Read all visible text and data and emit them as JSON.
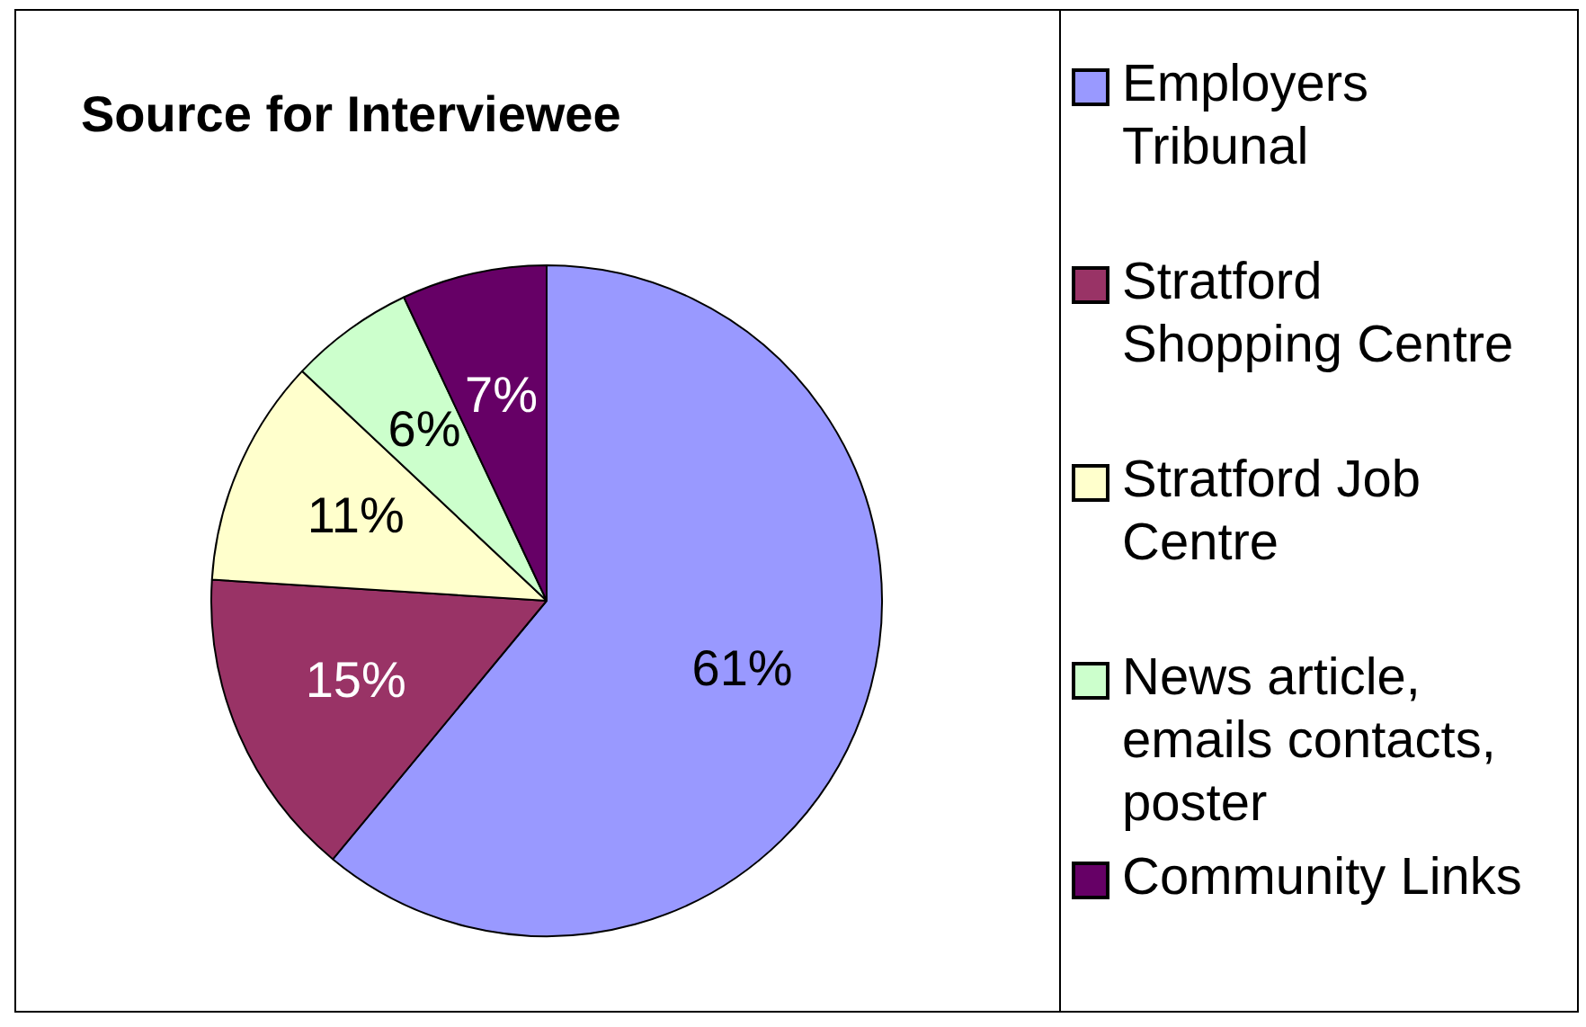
{
  "chart_data": {
    "type": "pie",
    "title": "Source for Interviewee",
    "categories": [
      "Employers Tribunal",
      "Stratford Shopping Centre",
      "Stratford Job Centre",
      "News article, emails contacts, poster",
      "Community Links"
    ],
    "values": [
      61,
      15,
      11,
      6,
      7
    ],
    "colors": [
      "#9999ff",
      "#993366",
      "#ffffcc",
      "#ccffcc",
      "#660066"
    ],
    "value_labels": [
      "61%",
      "15%",
      "11%",
      "6%",
      "7%"
    ],
    "legend": "right"
  }
}
